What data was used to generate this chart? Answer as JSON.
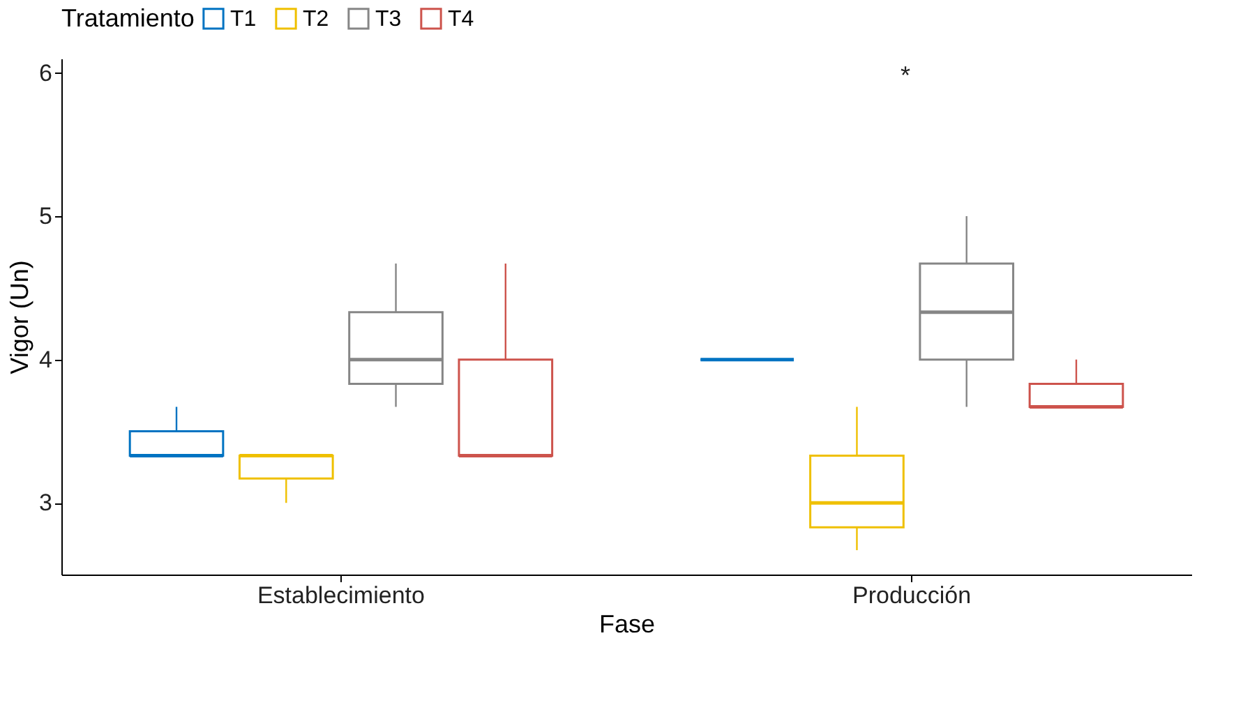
{
  "chart_data": {
    "type": "box",
    "xlabel": "Fase",
    "ylabel": "Vigor (Un)",
    "legend_title": "Tratamiento",
    "legend": "top",
    "grid": false,
    "categories": [
      "Establecimiento",
      "Producción"
    ],
    "ylim": [
      2.5,
      6.1
    ],
    "yticks": [
      3,
      4,
      5,
      6
    ],
    "annotations": [
      "*"
    ],
    "series": [
      {
        "name": "T1",
        "color": "#0073c2",
        "boxes": [
          {
            "low": 3.33,
            "q1": 3.33,
            "median": 3.33,
            "q3": 3.5,
            "high": 3.67
          },
          {
            "low": 4.0,
            "q1": 4.0,
            "median": 4.0,
            "q3": 4.0,
            "high": 4.0
          }
        ]
      },
      {
        "name": "T2",
        "color": "#efc000",
        "boxes": [
          {
            "low": 3.0,
            "q1": 3.17,
            "median": 3.33,
            "q3": 3.33,
            "high": 3.33
          },
          {
            "low": 2.67,
            "q1": 2.83,
            "median": 3.0,
            "q3": 3.33,
            "high": 3.67
          }
        ]
      },
      {
        "name": "T3",
        "color": "#868686",
        "boxes": [
          {
            "low": 3.67,
            "q1": 3.83,
            "median": 4.0,
            "q3": 4.33,
            "high": 4.67
          },
          {
            "low": 3.67,
            "q1": 4.0,
            "median": 4.33,
            "q3": 4.67,
            "high": 5.0
          }
        ]
      },
      {
        "name": "T4",
        "color": "#cd534c",
        "boxes": [
          {
            "low": 3.33,
            "q1": 3.33,
            "median": 3.33,
            "q3": 4.0,
            "high": 4.67
          },
          {
            "low": 3.67,
            "q1": 3.67,
            "median": 3.67,
            "q3": 3.83,
            "high": 4.0
          }
        ]
      }
    ]
  }
}
